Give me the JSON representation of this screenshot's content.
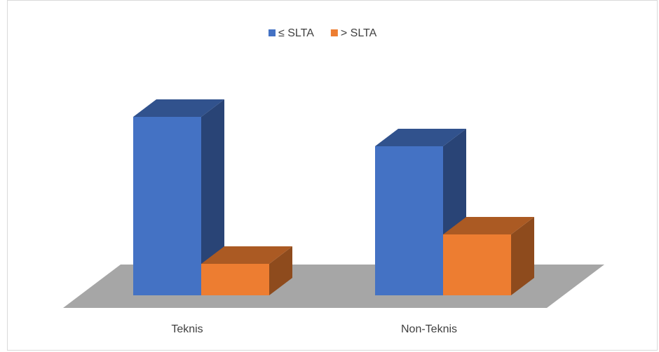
{
  "chart_data": {
    "type": "bar3d",
    "categories": [
      "Teknis",
      "Non-Teknis"
    ],
    "series": [
      {
        "name": "≤ SLTA",
        "color": "#4472c4",
        "values": [
          85,
          71
        ]
      },
      {
        "name": "> SLTA",
        "color": "#ed7d31",
        "values": [
          15,
          29
        ]
      }
    ],
    "ylim": [
      0,
      100
    ],
    "legend": "top"
  }
}
